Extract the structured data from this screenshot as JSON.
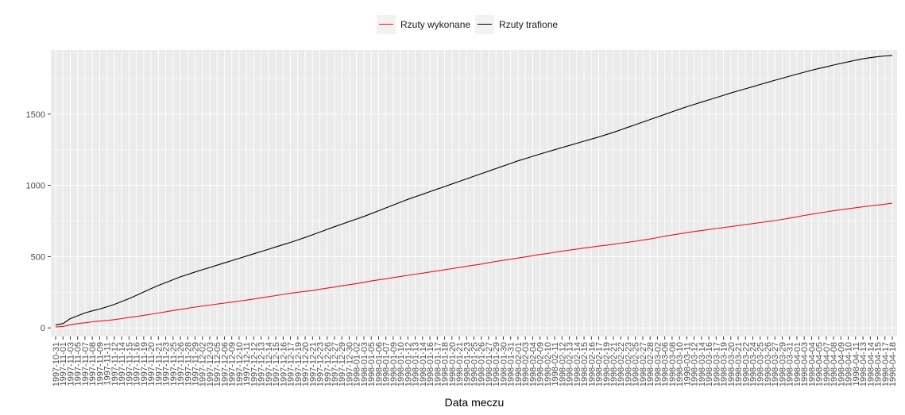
{
  "chart_data": {
    "type": "line",
    "title": "",
    "xlabel": "Data meczu",
    "ylabel": "",
    "ylim": [
      -60,
      1950
    ],
    "yticks": [
      0,
      500,
      1000,
      1500
    ],
    "grid": true,
    "legend_position": "top",
    "x": [
      "1997-10-31",
      "1997-11-01",
      "1997-11-03",
      "1997-11-05",
      "1997-11-07",
      "1997-11-08",
      "1997-11-09",
      "1997-11-11",
      "1997-11-12",
      "1997-11-14",
      "1997-11-15",
      "1997-11-16",
      "1997-11-19",
      "1997-11-20",
      "1997-11-21",
      "1997-11-23",
      "1997-11-25",
      "1997-11-26",
      "1997-11-28",
      "1997-11-29",
      "1997-12-02",
      "1997-12-03",
      "1997-12-05",
      "1997-12-06",
      "1997-12-09",
      "1997-12-10",
      "1997-12-11",
      "1997-12-12",
      "1997-12-13",
      "1997-12-14",
      "1997-12-15",
      "1997-12-16",
      "1997-12-17",
      "1997-12-19",
      "1997-12-20",
      "1997-12-21",
      "1997-12-23",
      "1997-12-26",
      "1997-12-27",
      "1997-12-29",
      "1997-12-30",
      "1998-01-02",
      "1998-01-03",
      "1998-01-05",
      "1998-01-06",
      "1998-01-07",
      "1998-01-09",
      "1998-01-10",
      "1998-01-12",
      "1998-01-13",
      "1998-01-14",
      "1998-01-16",
      "1998-01-17",
      "1998-01-18",
      "1998-01-20",
      "1998-01-21",
      "1998-01-23",
      "1998-01-25",
      "1998-01-26",
      "1998-01-27",
      "1998-01-29",
      "1998-01-30",
      "1998-01-31",
      "1998-02-01",
      "1998-02-03",
      "1998-02-04",
      "1998-02-09",
      "1998-02-10",
      "1998-02-11",
      "1998-02-12",
      "1998-02-13",
      "1998-02-14",
      "1998-02-15",
      "1998-02-16",
      "1998-02-17",
      "1998-02-19",
      "1998-02-21",
      "1998-02-22",
      "1998-02-23",
      "1998-02-25",
      "1998-02-27",
      "1998-02-28",
      "1998-03-02",
      "1998-03-06",
      "1998-03-08",
      "1998-03-10",
      "1998-03-11",
      "1998-03-12",
      "1998-03-14",
      "1998-03-16",
      "1998-03-17",
      "1998-03-19",
      "1998-03-20",
      "1998-03-21",
      "1998-03-22",
      "1998-03-24",
      "1998-03-25",
      "1998-03-26",
      "1998-03-27",
      "1998-03-29",
      "1998-03-31",
      "1998-04-01",
      "1998-04-03",
      "1998-04-04",
      "1998-04-05",
      "1998-04-07",
      "1998-04-08",
      "1998-04-09",
      "1998-04-10",
      "1998-04-11",
      "1998-04-13",
      "1998-04-14",
      "1998-04-15",
      "1998-04-17",
      "1998-04-18"
    ],
    "tick_labels": [
      "1997-10-31",
      "1997-11-01",
      "1997-11-03",
      "1997-11-05",
      "1997-11-07",
      "1997-11-08",
      "1997-11-09",
      "1997-11-11",
      "1997-11-12",
      "1997-11-14",
      "1997-11-15",
      "1997-11-16",
      "1997-11-19",
      "1997-11-20",
      "1997-11-21",
      "1997-11-23",
      "1997-11-25",
      "1997-11-26",
      "1997-11-28",
      "1997-11-29",
      "1997-12-02",
      "1997-12-03",
      "1997-12-05",
      "1997-12-06",
      "1997-12-09",
      "1997-12-10",
      "1997-12-11",
      "1997-12-12",
      "1997-12-13",
      "1997-12-14",
      "1997-12-15",
      "1997-12-16",
      "1997-12-17",
      "1997-12-19",
      "1997-12-20",
      "1997-12-21",
      "1997-12-23",
      "1997-12-26",
      "1997-12-27",
      "1997-12-29",
      "1997-12-30",
      "1998-01-02",
      "1998-01-03",
      "1998-01-05",
      "1998-01-06",
      "1998-01-07",
      "1998-01-09",
      "1998-01-10",
      "1998-01-12",
      "1998-01-13",
      "1998-01-14",
      "1998-01-16",
      "1998-01-17",
      "1998-01-18",
      "1998-01-20",
      "1998-01-21",
      "1998-01-23",
      "1998-01-25",
      "1998-01-26",
      "1998-01-27",
      "1998-01-29",
      "1998-01-30",
      "1998-01-31",
      "1998-02-01",
      "1998-02-03",
      "1998-02-04",
      "1998-02-09",
      "1998-02-10",
      "1998-02-11",
      "1998-02-12",
      "1998-02-13",
      "1998-02-14",
      "1998-02-15",
      "1998-02-16",
      "1998-02-17",
      "1998-02-19",
      "1998-02-21",
      "1998-02-22",
      "1998-02-23",
      "1998-02-25",
      "1998-02-27",
      "1998-02-28",
      "1998-03-02",
      "1998-03-06",
      "1998-03-08",
      "1998-03-10",
      "1998-03-11",
      "1998-03-12",
      "1998-03-14",
      "1998-03-16",
      "1998-03-17",
      "1998-03-19",
      "1998-03-20",
      "1998-03-21",
      "1998-03-22",
      "1998-03-24",
      "1998-03-25",
      "1998-03-26",
      "1998-03-27",
      "1998-03-29",
      "1998-03-31",
      "1998-04-01",
      "1998-04-03",
      "1998-04-04",
      "1998-04-05",
      "1998-04-07",
      "1998-04-08",
      "1998-04-09",
      "1998-04-10",
      "1998-04-11",
      "1998-04-13",
      "1998-04-14",
      "1998-04-15",
      "1998-04-17",
      "1998-04-18"
    ],
    "series": [
      {
        "name": "Rzuty wykonane",
        "color": "#e8141a",
        "values": [
          6,
          10,
          22,
          30,
          36,
          43,
          48,
          52,
          58,
          65,
          73,
          80,
          88,
          96,
          104,
          113,
          122,
          130,
          138,
          146,
          153,
          160,
          167,
          174,
          181,
          188,
          195,
          203,
          211,
          219,
          227,
          235,
          243,
          250,
          256,
          262,
          271,
          279,
          287,
          295,
          303,
          311,
          320,
          329,
          337,
          344,
          353,
          361,
          369,
          377,
          384,
          392,
          400,
          408,
          416,
          424,
          432,
          440,
          448,
          457,
          466,
          474,
          482,
          490,
          498,
          507,
          515,
          522,
          530,
          538,
          546,
          553,
          560,
          567,
          574,
          580,
          587,
          594,
          601,
          608,
          616,
          624,
          633,
          643,
          652,
          660,
          668,
          676,
          683,
          690,
          697,
          704,
          711,
          718,
          725,
          732,
          739,
          746,
          753,
          761,
          770,
          779,
          789,
          798,
          806,
          814,
          822,
          829,
          836,
          843,
          850,
          856,
          862,
          868,
          875
        ]
      },
      {
        "name": "Rzuty trafione",
        "color": "#000000",
        "values": [
          20,
          30,
          65,
          85,
          105,
          120,
          132,
          148,
          165,
          185,
          205,
          228,
          252,
          275,
          298,
          318,
          338,
          358,
          375,
          392,
          408,
          424,
          440,
          456,
          472,
          488,
          504,
          520,
          536,
          552,
          568,
          584,
          600,
          617,
          635,
          653,
          672,
          691,
          710,
          728,
          746,
          764,
          782,
          802,
          822,
          842,
          862,
          882,
          902,
          920,
          938,
          956,
          974,
          992,
          1010,
          1028,
          1046,
          1064,
          1082,
          1100,
          1118,
          1136,
          1154,
          1172,
          1188,
          1204,
          1220,
          1235,
          1250,
          1265,
          1280,
          1295,
          1310,
          1325,
          1340,
          1356,
          1372,
          1390,
          1408,
          1426,
          1444,
          1462,
          1480,
          1498,
          1516,
          1534,
          1552,
          1568,
          1584,
          1600,
          1616,
          1632,
          1648,
          1663,
          1678,
          1693,
          1708,
          1723,
          1738,
          1752,
          1766,
          1780,
          1794,
          1808,
          1820,
          1832,
          1844,
          1856,
          1867,
          1878,
          1888,
          1896,
          1903,
          1908,
          1912
        ]
      }
    ]
  }
}
